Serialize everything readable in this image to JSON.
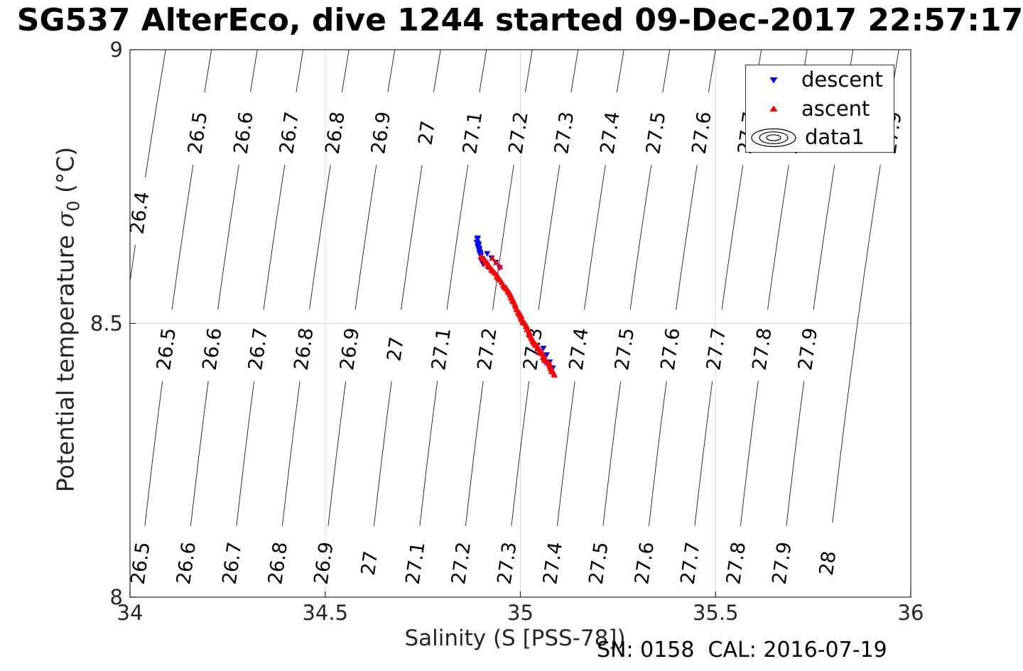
{
  "header": {
    "title": "SG537 AlterEco, dive 1244 started 09-Dec-2017 22:57:17"
  },
  "axes": {
    "x": {
      "label": "Salinity (S [PSS-78])",
      "ticks": [
        "34",
        "34.5",
        "35",
        "35.5",
        "36"
      ]
    },
    "y": {
      "label_prefix": "Potential temperature ",
      "label_sigma": "σ",
      "label_sub": "0",
      "label_suffix": " (°C)",
      "ticks": [
        "8",
        "8.5",
        "9"
      ]
    }
  },
  "legend": {
    "entries": [
      {
        "label": "descent",
        "marker": "triangle-down",
        "color": "#0000ff"
      },
      {
        "label": "ascent",
        "marker": "triangle-up",
        "color": "#ff0000"
      },
      {
        "label": "data1",
        "marker": "contour-ellipses",
        "color": "#000000"
      }
    ]
  },
  "footer": {
    "text": "SN: 0158  CAL: 2016-07-19"
  },
  "chart_data": {
    "type": "scatter",
    "title": "SG537 AlterEco, dive 1244 started 09-Dec-2017 22:57:17",
    "xlabel": "Salinity (S [PSS-78])",
    "ylabel": "Potential temperature σ0 (°C)",
    "xlim": [
      34,
      36
    ],
    "ylim": [
      8,
      9
    ],
    "x_ticks": [
      34,
      34.5,
      35,
      35.5,
      36
    ],
    "y_ticks": [
      8,
      8.5,
      9
    ],
    "grid": true,
    "legend_position": "top-right",
    "contours": {
      "description": "potential density anomaly isopycnals, labeled every 0.1",
      "levels": [
        26.4,
        26.5,
        26.6,
        26.7,
        26.8,
        26.9,
        27.0,
        27.1,
        27.2,
        27.3,
        27.4,
        27.5,
        27.6,
        27.7,
        27.8,
        27.9,
        28.0
      ],
      "label_rows": {
        "top": 8.848,
        "middle": 8.453,
        "bottom": 8.062,
        "left": 8.702
      }
    },
    "series": [
      {
        "name": "descent",
        "color": "#0000ff",
        "marker": "triangle-down",
        "dense_path": [
          [
            34.888,
            8.656
          ],
          [
            34.893,
            8.641
          ],
          [
            34.897,
            8.628
          ],
          [
            34.906,
            8.607
          ]
        ],
        "points": [
          [
            34.915,
            8.628
          ],
          [
            34.926,
            8.62
          ],
          [
            34.937,
            8.612
          ],
          [
            34.947,
            8.602
          ],
          [
            35.059,
            8.455
          ],
          [
            35.067,
            8.443
          ],
          [
            35.075,
            8.43
          ],
          [
            35.083,
            8.419
          ]
        ]
      },
      {
        "name": "ascent",
        "color": "#ff0000",
        "marker": "triangle-up",
        "dense_path": [
          [
            34.9,
            8.622
          ],
          [
            34.92,
            8.604
          ],
          [
            34.941,
            8.585
          ],
          [
            34.962,
            8.565
          ],
          [
            34.981,
            8.542
          ],
          [
            34.996,
            8.519
          ],
          [
            35.009,
            8.5
          ],
          [
            35.024,
            8.48
          ],
          [
            35.038,
            8.462
          ],
          [
            35.051,
            8.448
          ],
          [
            35.062,
            8.436
          ],
          [
            35.072,
            8.426
          ],
          [
            35.08,
            8.415
          ],
          [
            35.088,
            8.405
          ]
        ],
        "points": [
          [
            34.928,
            8.619
          ],
          [
            34.938,
            8.611
          ],
          [
            34.948,
            8.603
          ]
        ]
      }
    ]
  }
}
